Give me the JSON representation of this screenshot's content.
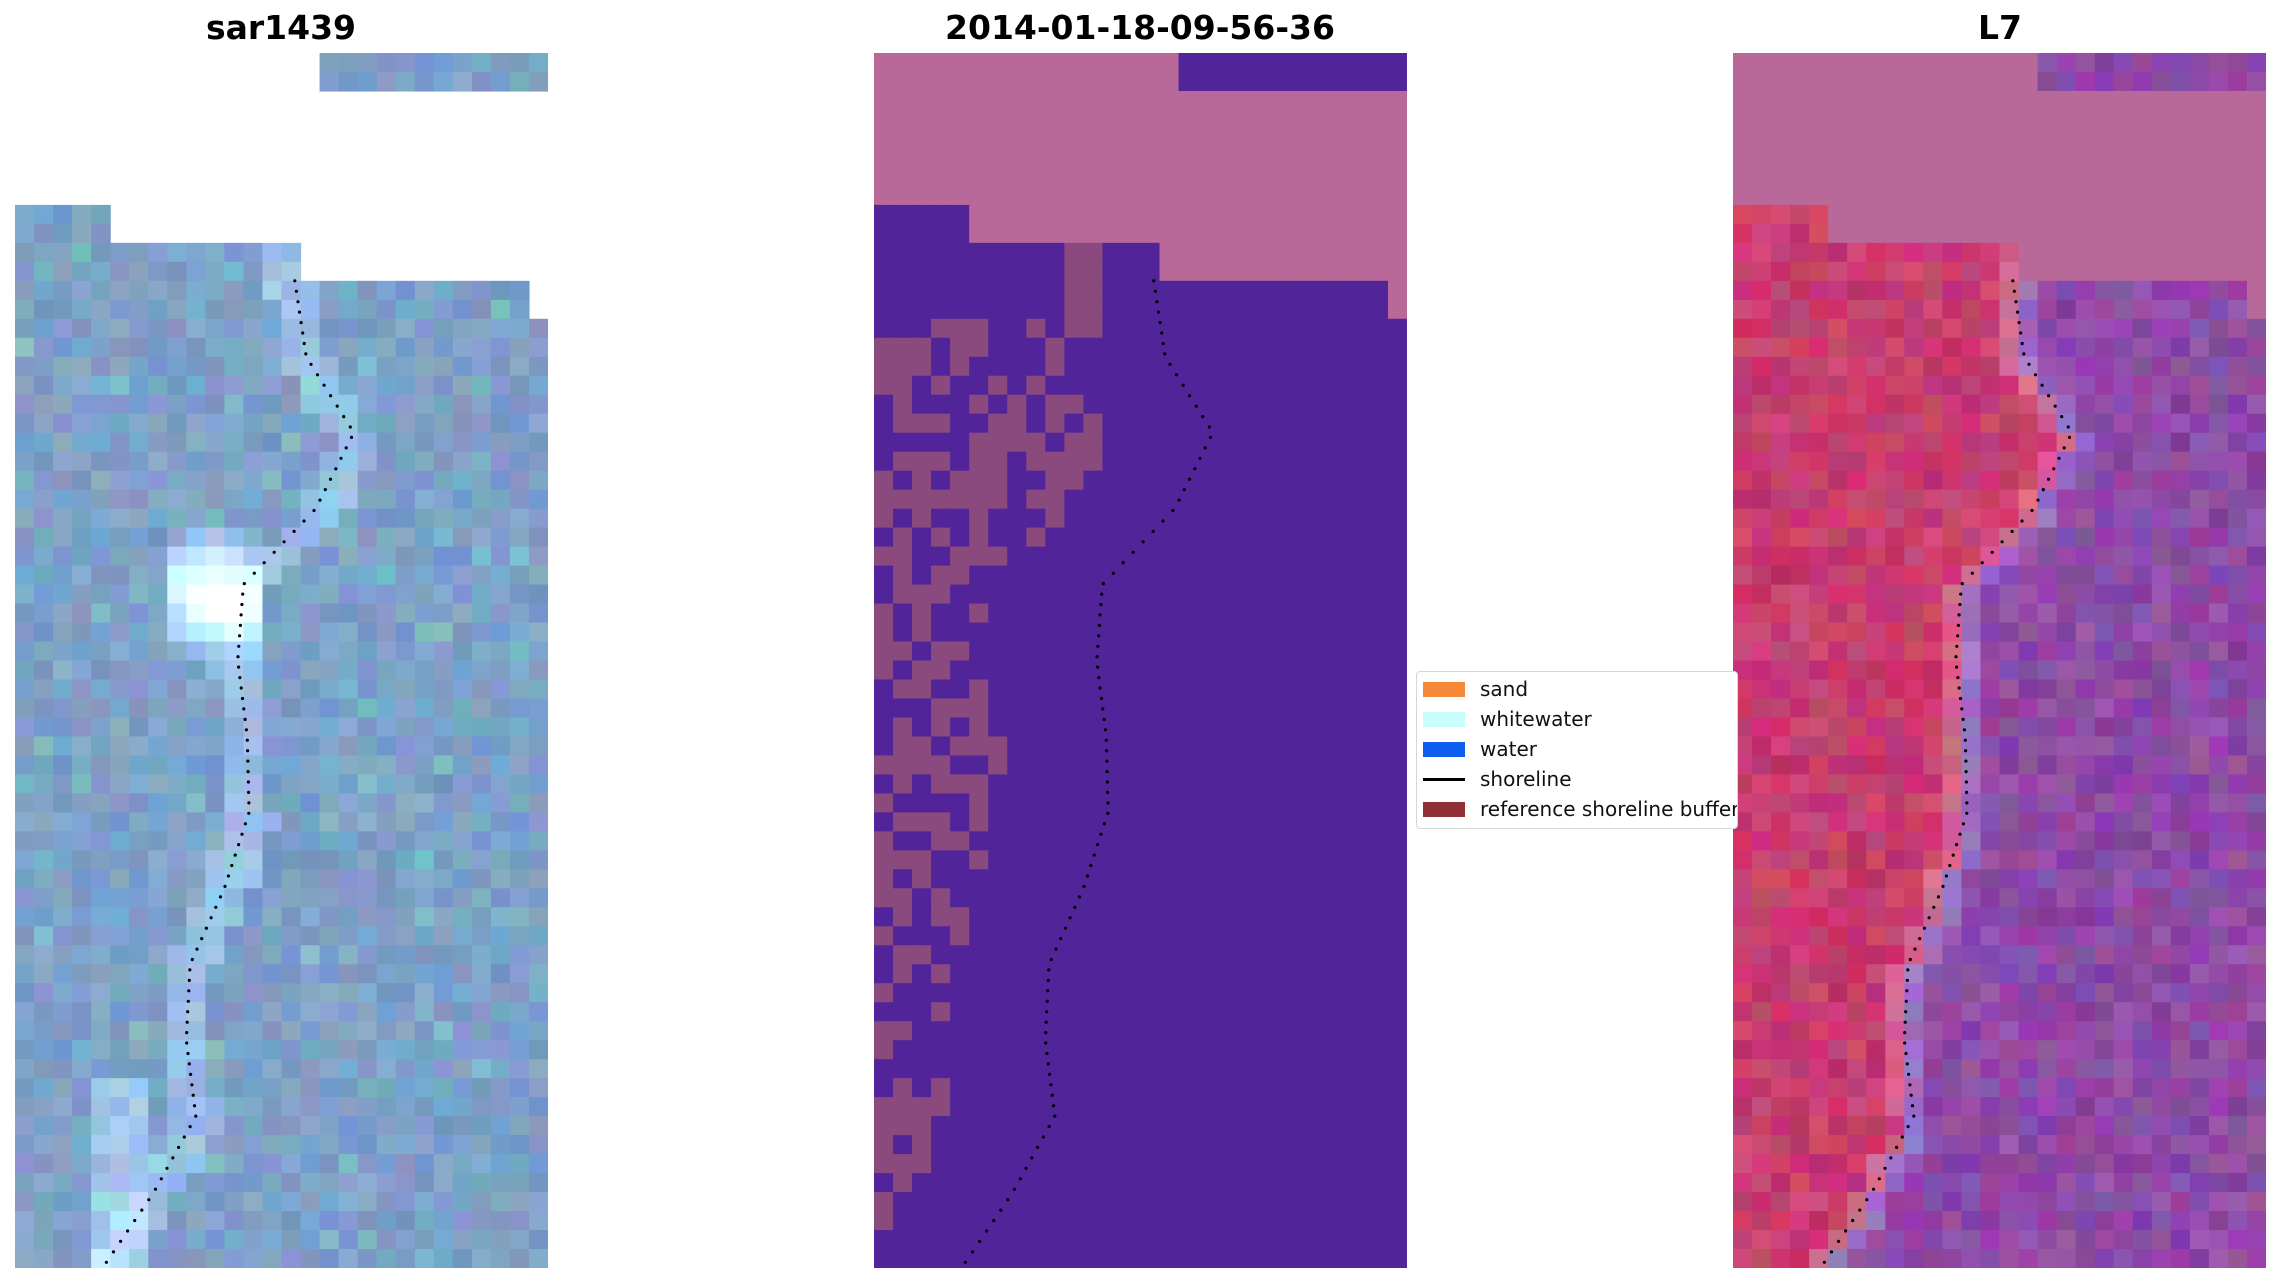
{
  "panels": [
    {
      "title": "sar1439"
    },
    {
      "title": "2014-01-18-09-56-36"
    },
    {
      "title": "L7"
    }
  ],
  "legend": {
    "items": [
      {
        "label": "sand",
        "color": "#f6883a",
        "kind": "patch"
      },
      {
        "label": "whitewater",
        "color": "#c8fdfc",
        "kind": "patch"
      },
      {
        "label": "water",
        "color": "#0d5ef0",
        "kind": "patch"
      },
      {
        "label": "shoreline",
        "color": "#000000",
        "kind": "line"
      },
      {
        "label": "reference shoreline buffer",
        "color": "#8f2f36",
        "kind": "patch"
      }
    ]
  },
  "colors": {
    "sar_base": "#7ea0c8",
    "class_water_overlay": "#52249a",
    "class_land_overlay": "#b9689a",
    "class_buffer": "#8b4a7e",
    "l7_land": "#c73d70",
    "l7_water": "#8e4aa6",
    "l7_nodata": "#b9689a"
  }
}
